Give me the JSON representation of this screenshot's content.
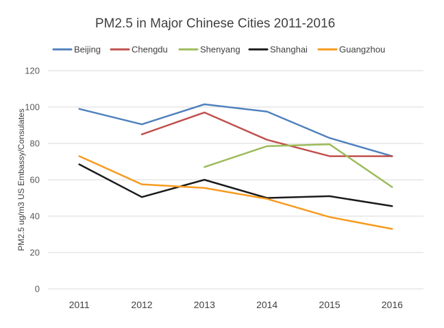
{
  "chart_data": {
    "type": "line",
    "title": "PM2.5 in Major Chinese Cities 2011-2016",
    "xlabel": "",
    "ylabel": "PM2.5 ug/m3 US Embassy/Consulates",
    "categories": [
      "2011",
      "2012",
      "2013",
      "2014",
      "2015",
      "2016"
    ],
    "ylim": [
      0,
      120
    ],
    "yticks": [
      0,
      20,
      40,
      60,
      80,
      100,
      120
    ],
    "grid": true,
    "legend_position": "top",
    "series": [
      {
        "name": "Beijing",
        "color": "#4f81bd",
        "values": [
          99,
          90.5,
          101.5,
          97.5,
          83,
          73
        ]
      },
      {
        "name": "Chengdu",
        "color": "#c0504d",
        "values": [
          null,
          85,
          97,
          82,
          73,
          73
        ]
      },
      {
        "name": "Shenyang",
        "color": "#9bbb59",
        "values": [
          null,
          null,
          67,
          78.5,
          79.5,
          56
        ]
      },
      {
        "name": "Shanghai",
        "color": "#1a1a1a",
        "values": [
          68.5,
          50.5,
          60,
          50,
          51,
          45.5
        ]
      },
      {
        "name": "Guangzhou",
        "color": "#f79a1e",
        "values": [
          73,
          57.5,
          55.5,
          49.5,
          39.5,
          33
        ]
      }
    ]
  }
}
